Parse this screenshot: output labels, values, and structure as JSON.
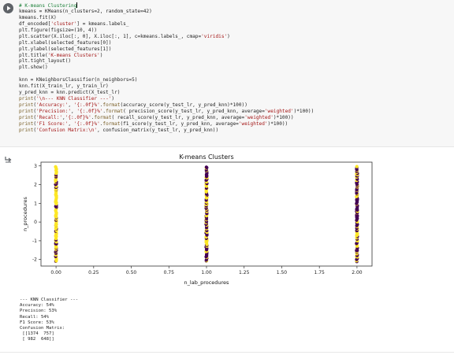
{
  "code_cell": {
    "lines": [
      "# K-means Clustering",
      "kmeans = KMeans(n_clusters=2, random_state=42)",
      "kmeans.fit(X)",
      "df_encoded['cluster'] = kmeans.labels_",
      "plt.figure(figsize=(10, 4))",
      "plt.scatter(X.iloc[:, 0], X.iloc[:, 1], c=kmeans.labels_, cmap='viridis')",
      "plt.xlabel(selected_features[0])",
      "plt.ylabel(selected_features[1])",
      "plt.title('K-means Clusters')",
      "plt.tight_layout()",
      "plt.show()",
      "",
      "knn = KNeighborsClassifier(n_neighbors=5)",
      "knn.fit(X_train_lr, y_train_lr)",
      "y_pred_knn = knn.predict(X_test_lr)",
      "print('\\n--- KNN Classifier ---')",
      "print('Accuracy:', '{:.0f}%'.format(accuracy_score(y_test_lr, y_pred_knn)*100))",
      "print('Precision:', '{:.0f}%'.format( precision_score(y_test_lr, y_pred_knn, average='weighted')*100))",
      "print('Recall:','{:.0f}%'.format( recall_score(y_test_lr, y_pred_knn, average='weighted')*100))",
      "print('F1 Score:', '{:.0f}%'.format(f1_score(y_test_lr, y_pred_knn, average='weighted')*100))",
      "print('Confusion Matrix:\\n', confusion_matrix(y_test_lr, y_pred_knn))"
    ]
  },
  "icons": {
    "run": "play-circle-icon",
    "output": "output-toggle-icon"
  },
  "colors": {
    "cluster_0": "#440154",
    "cluster_1": "#fde725",
    "cell_bg": "#f7f7f7"
  },
  "chart_data": {
    "type": "scatter",
    "title": "K-means Clusters",
    "xlabel": "n_lab_procedures",
    "ylabel": "n_procedures",
    "xlim": [
      -0.1,
      2.1
    ],
    "ylim": [
      -2.35,
      3.2
    ],
    "xticks": [
      "0.00",
      "0.25",
      "0.50",
      "0.75",
      "1.00",
      "1.25",
      "1.50",
      "1.75",
      "2.00"
    ],
    "yticks": [
      "-2",
      "-1",
      "0",
      "1",
      "2",
      "3"
    ],
    "grid": false,
    "colormap": "viridis",
    "points_x": [
      0,
      1,
      2
    ],
    "points_y_range": [
      -2.1,
      2.95
    ],
    "clusters": [
      0,
      1
    ]
  },
  "text_output": {
    "lines": [
      "--- KNN Classifier ---",
      "Accuracy: 54%",
      "Precision: 53%",
      "Recall: 54%",
      "F1 Score: 53%",
      "Confusion Matrix:",
      " [[1374  757]",
      " [ 982  648]]"
    ]
  }
}
